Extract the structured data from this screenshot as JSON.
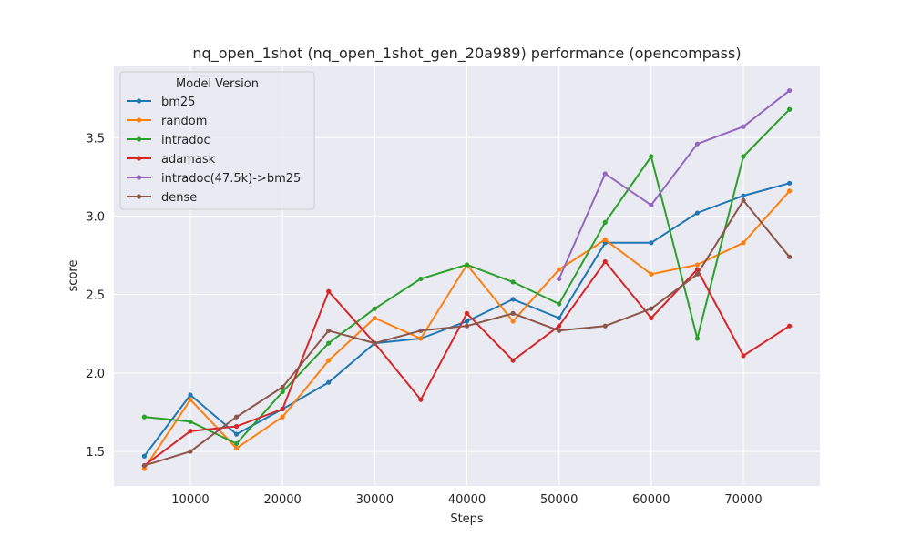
{
  "chart_data": {
    "type": "line",
    "title": "nq_open_1shot (nq_open_1shot_gen_20a989) performance (opencompass)",
    "xlabel": "Steps",
    "ylabel": "score",
    "xlim": [
      1700,
      78300
    ],
    "ylim": [
      1.28,
      3.96
    ],
    "xticks": [
      10000,
      20000,
      30000,
      40000,
      50000,
      60000,
      70000
    ],
    "yticks": [
      1.5,
      2.0,
      2.5,
      3.0,
      3.5
    ],
    "grid": true,
    "legend": {
      "title": "Model Version",
      "position": "top-left"
    },
    "series": [
      {
        "name": "bm25",
        "color": "#1f77b4",
        "x": [
          5000,
          10000,
          15000,
          20000,
          25000,
          30000,
          35000,
          40000,
          45000,
          50000,
          55000,
          60000,
          65000,
          70000,
          75000
        ],
        "y": [
          1.47,
          1.86,
          1.61,
          1.77,
          1.94,
          2.19,
          2.22,
          2.33,
          2.47,
          2.35,
          2.83,
          2.83,
          3.02,
          3.13,
          3.21
        ]
      },
      {
        "name": "random",
        "color": "#ff7f0e",
        "x": [
          5000,
          10000,
          15000,
          20000,
          25000,
          30000,
          35000,
          40000,
          45000,
          50000,
          55000,
          60000,
          65000,
          70000,
          75000
        ],
        "y": [
          1.39,
          1.83,
          1.52,
          1.72,
          2.08,
          2.35,
          2.22,
          2.69,
          2.33,
          2.66,
          2.85,
          2.63,
          2.69,
          2.83,
          3.16
        ]
      },
      {
        "name": "intradoc",
        "color": "#2ca02c",
        "x": [
          5000,
          10000,
          15000,
          20000,
          25000,
          30000,
          35000,
          40000,
          45000,
          50000,
          55000,
          60000,
          65000,
          70000,
          75000
        ],
        "y": [
          1.72,
          1.69,
          1.55,
          1.88,
          2.19,
          2.41,
          2.6,
          2.69,
          2.58,
          2.44,
          2.96,
          3.38,
          2.22,
          3.38,
          3.68
        ]
      },
      {
        "name": "adamask",
        "color": "#d62728",
        "x": [
          5000,
          10000,
          15000,
          20000,
          25000,
          30000,
          35000,
          40000,
          45000,
          50000,
          55000,
          60000,
          65000,
          70000,
          75000
        ],
        "y": [
          1.41,
          1.63,
          1.66,
          1.77,
          2.52,
          2.19,
          1.83,
          2.38,
          2.08,
          2.3,
          2.71,
          2.35,
          2.66,
          2.11,
          2.3
        ]
      },
      {
        "name": "intradoc(47.5k)->bm25",
        "color": "#9467bd",
        "x": [
          50000,
          55000,
          60000,
          65000,
          70000,
          75000
        ],
        "y": [
          2.6,
          3.27,
          3.07,
          3.46,
          3.57,
          3.8
        ]
      },
      {
        "name": "dense",
        "color": "#8c564b",
        "x": [
          5000,
          10000,
          15000,
          20000,
          25000,
          30000,
          35000,
          40000,
          45000,
          50000,
          55000,
          60000,
          65000,
          70000,
          75000
        ],
        "y": [
          1.41,
          1.5,
          1.72,
          1.91,
          2.27,
          2.19,
          2.27,
          2.3,
          2.38,
          2.27,
          2.3,
          2.41,
          2.63,
          3.1,
          2.74
        ]
      }
    ]
  }
}
